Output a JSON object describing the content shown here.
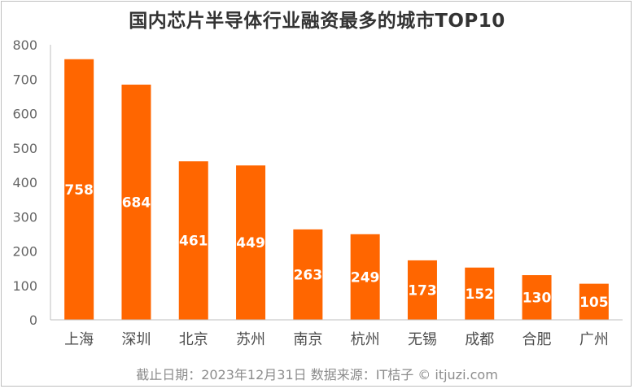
{
  "title": "国内芯片半导体行业融资最多的城市TOP10",
  "footer": "截止日期：2023年12月31日    数据来源：IT桔子 © itjuzi.com",
  "colors": {
    "bar": "#ff6600",
    "axis": "#bfbfbf",
    "tick": "#666666",
    "label": "#ffffff"
  },
  "chart_data": {
    "type": "bar",
    "title": "国内芯片半导体行业融资最多的城市TOP10",
    "categories": [
      "上海",
      "深圳",
      "北京",
      "苏州",
      "南京",
      "杭州",
      "无锡",
      "成都",
      "合肥",
      "广州"
    ],
    "values": [
      758,
      684,
      461,
      449,
      263,
      249,
      173,
      152,
      130,
      105
    ],
    "data_labels": [
      "758",
      "684",
      "461",
      "449",
      "263",
      "249",
      "173",
      "152",
      "130",
      "105"
    ],
    "yticks": [
      "0",
      "100",
      "200",
      "300",
      "400",
      "500",
      "600",
      "700",
      "800"
    ],
    "ylim": [
      0,
      800
    ],
    "xlabel": "",
    "ylabel": "",
    "grid": false,
    "legend": "none"
  }
}
